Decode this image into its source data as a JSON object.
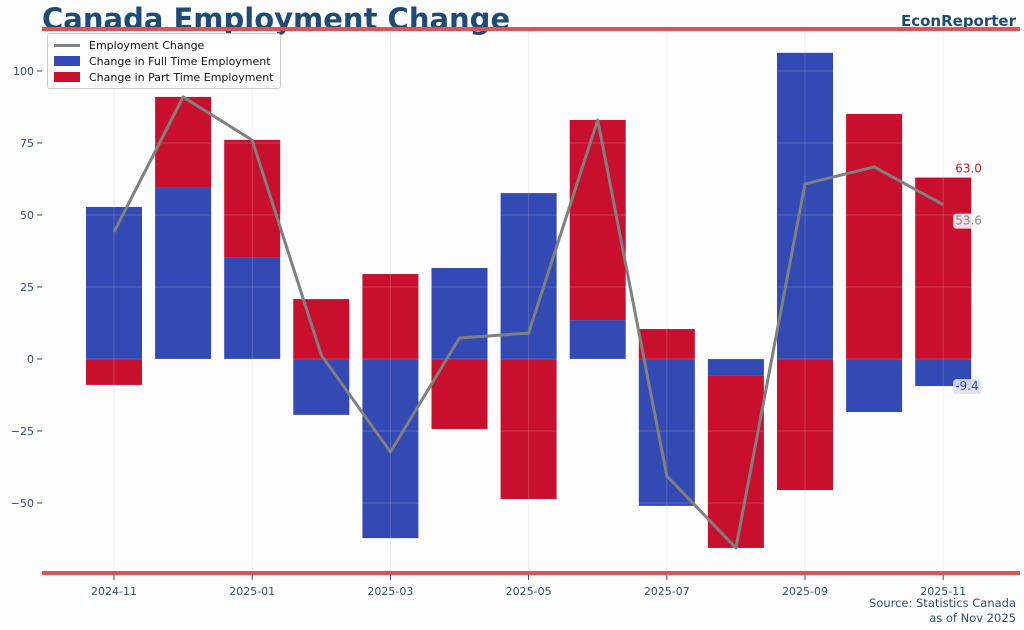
{
  "header": {
    "title": "Canada Employment Change",
    "brand": "EconReporter"
  },
  "footer": {
    "source": "Source: Statistics Canada",
    "asof": "as of Nov 2025"
  },
  "colors": {
    "full_time": "#3349b3",
    "part_time": "#c8102e",
    "line": "#808080",
    "accent": "#e05252",
    "text": "#1f4a73"
  },
  "chart_data": {
    "type": "bar",
    "title": "Canada Employment Change",
    "stacked": true,
    "categories": [
      "2024-11",
      "2024-12",
      "2025-01",
      "2025-02",
      "2025-03",
      "2025-04",
      "2025-05",
      "2025-06",
      "2025-07",
      "2025-08",
      "2025-09",
      "2025-10",
      "2025-11"
    ],
    "x_tick_labels": [
      "2024-11",
      "2025-01",
      "2025-03",
      "2025-05",
      "2025-07",
      "2025-09",
      "2025-11"
    ],
    "series": [
      {
        "name": "Change in Full Time Employment",
        "type": "bar",
        "values": [
          52.8,
          59.4,
          35.1,
          -19.4,
          -62.2,
          31.6,
          57.6,
          13.5,
          -51.0,
          -5.6,
          106.3,
          -18.4,
          -9.4
        ]
      },
      {
        "name": "Change in Part Time Employment",
        "type": "bar",
        "values": [
          -9.0,
          31.6,
          41.0,
          20.8,
          29.5,
          -24.3,
          -48.6,
          69.5,
          10.4,
          -60.0,
          -45.5,
          85.1,
          63.0
        ]
      },
      {
        "name": "Employment Change",
        "type": "line",
        "values": [
          44.1,
          91.0,
          76.0,
          1.4,
          -32.3,
          7.3,
          9.0,
          83.0,
          -40.6,
          -65.6,
          60.8,
          66.7,
          53.6
        ]
      }
    ],
    "annotations": {
      "part_time_last": "63.0",
      "total_last": "53.6",
      "full_time_last": "-9.4"
    },
    "y_ticks": [
      -50,
      -25,
      0,
      25,
      50,
      75,
      100
    ],
    "ylim": [
      -74,
      113
    ],
    "grid": true,
    "legend": "top-left",
    "xlabel": "",
    "ylabel": ""
  }
}
